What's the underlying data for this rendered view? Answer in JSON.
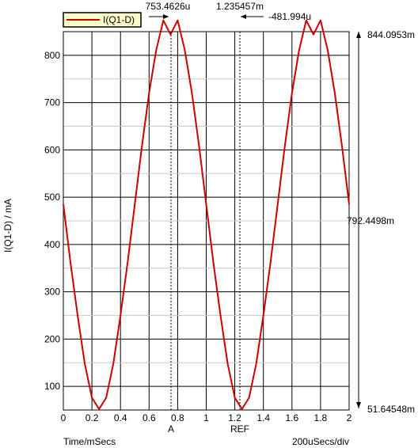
{
  "chart_data": {
    "type": "line",
    "title": "",
    "xlabel": "Time/mSecs",
    "ylabel": "I(Q1-D) / mA",
    "xlim": [
      0,
      2
    ],
    "ylim": [
      50,
      850
    ],
    "x_ticks": [
      "0",
      "0.2",
      "0.4",
      "0.6",
      "0.8",
      "1",
      "1.2",
      "1.4",
      "1.6",
      "1.8",
      "2"
    ],
    "y_ticks": [
      "100",
      "200",
      "300",
      "400",
      "500",
      "600",
      "700",
      "800"
    ],
    "grid": true,
    "legend": {
      "placement": "top-left",
      "entries": [
        "I(Q1-D)"
      ]
    },
    "series": [
      {
        "name": "I(Q1-D)",
        "color": "#cc0000",
        "x": [
          0,
          0.05,
          0.1,
          0.15,
          0.2,
          0.25,
          0.3,
          0.35,
          0.4,
          0.45,
          0.5,
          0.55,
          0.6,
          0.65,
          0.7,
          0.75,
          0.8,
          0.85,
          0.9,
          0.95,
          1.0,
          1.05,
          1.1,
          1.15,
          1.2,
          1.25,
          1.3,
          1.35,
          1.4,
          1.45,
          1.5,
          1.55,
          1.6,
          1.65,
          1.7,
          1.75,
          1.8,
          1.85,
          1.9,
          1.95,
          2.0
        ],
        "y": [
          485,
          362,
          250,
          148,
          76,
          52,
          76,
          148,
          250,
          362,
          485,
          608,
          720,
          811,
          874,
          844,
          874,
          811,
          720,
          608,
          485,
          362,
          250,
          148,
          76,
          52,
          76,
          148,
          250,
          362,
          485,
          608,
          720,
          811,
          874,
          844,
          874,
          811,
          720,
          608,
          485
        ]
      }
    ],
    "cursors": {
      "a_label": "A",
      "ref_label": "REF",
      "a_x": 0.7535,
      "ref_x": 1.2355,
      "top_left_readout": "753.4626u",
      "top_mid_readout": "1.235457m",
      "top_right_readout": "-481.994u",
      "right_top_readout": "844.0953m",
      "right_mid_readout": "792.4498m",
      "right_bottom_readout": "51.64548m"
    },
    "scale_label": "200uSecs/div"
  }
}
